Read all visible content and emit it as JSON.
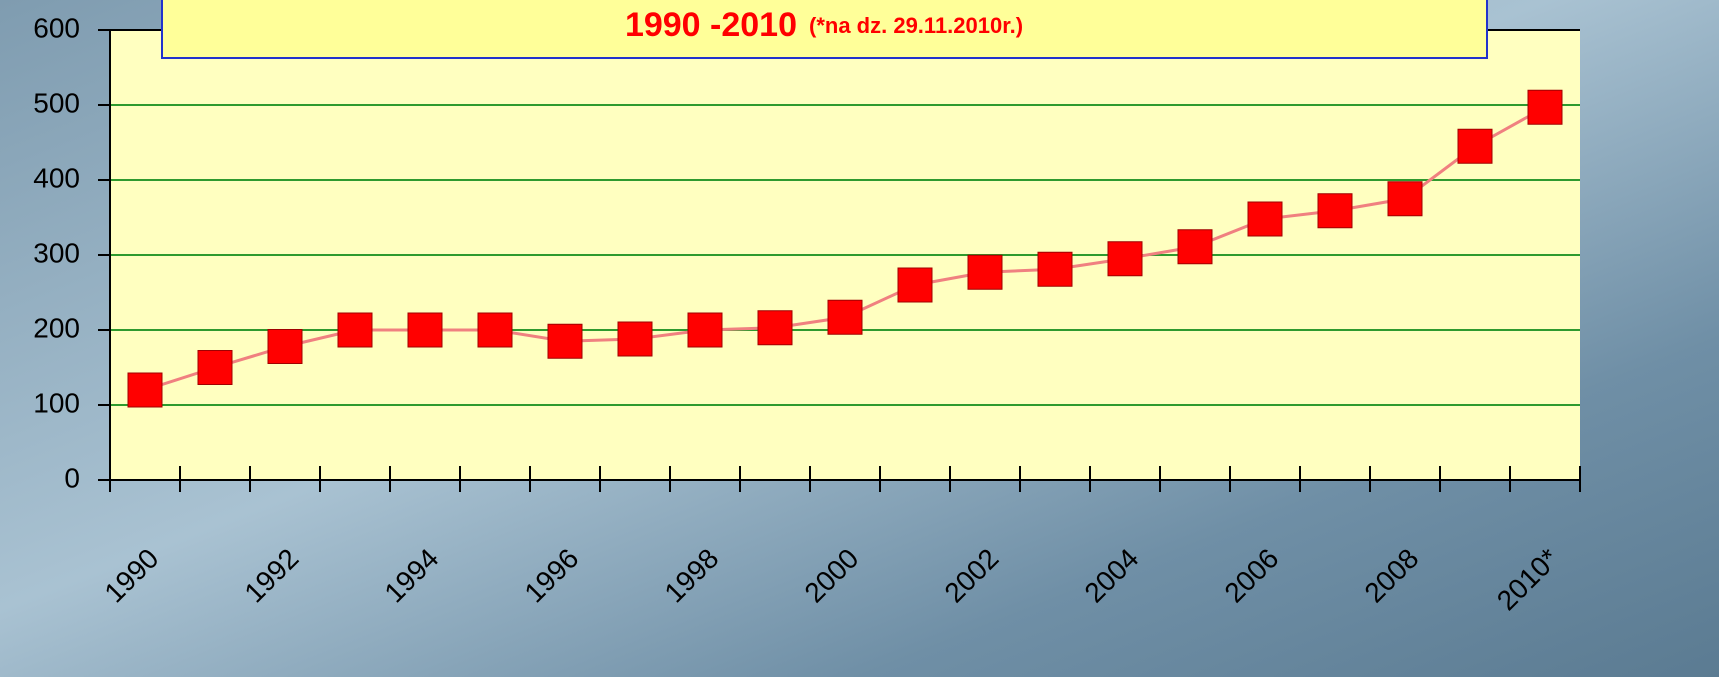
{
  "chart_data": {
    "type": "line",
    "title": "1990 -2010",
    "subtitle": "(*na dz. 29.11.2010r.)",
    "categories": [
      "1990",
      null,
      "1992",
      null,
      "1994",
      null,
      "1996",
      null,
      "1998",
      null,
      "2000",
      null,
      "2002",
      null,
      "2004",
      null,
      "2006",
      null,
      "2008",
      null,
      "2010*"
    ],
    "series": [
      {
        "color": "#ff0000",
        "line_color": "#f08080",
        "values": [
          120,
          150,
          178,
          200,
          200,
          200,
          185,
          188,
          200,
          203,
          217,
          260,
          277,
          281,
          295,
          311,
          348,
          359,
          375,
          445,
          497
        ]
      }
    ],
    "ylim": [
      0,
      600
    ],
    "yticks": [
      0,
      100,
      200,
      300,
      400,
      500,
      600
    ],
    "grid": true
  }
}
